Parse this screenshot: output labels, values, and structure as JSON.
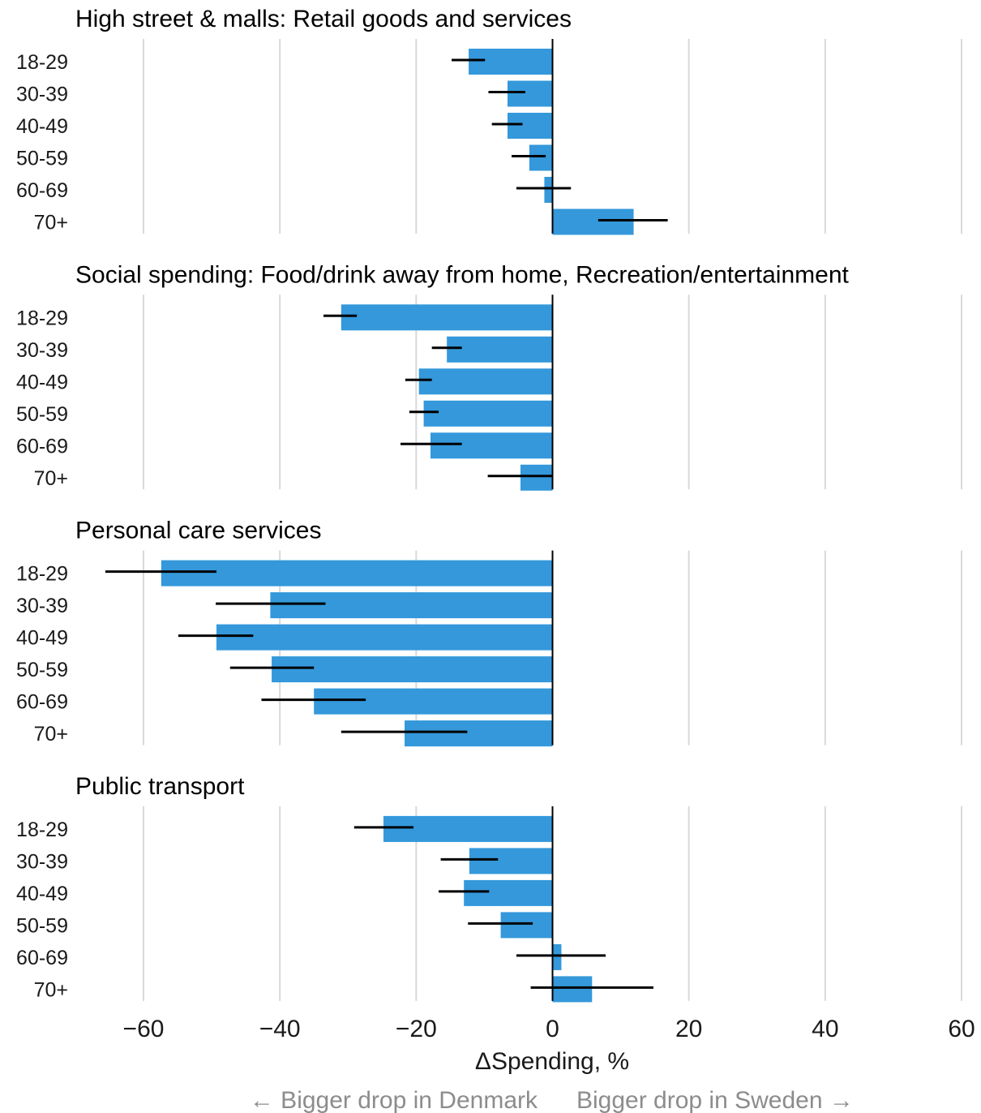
{
  "chart_data": {
    "type": "bar",
    "orientation": "horizontal",
    "categories": [
      "18-29",
      "30-39",
      "40-49",
      "50-59",
      "60-69",
      "70+"
    ],
    "xlabel": "ΔSpending, %",
    "xlim": [
      -60,
      60
    ],
    "xticks": [
      -60,
      -40,
      -20,
      0,
      20,
      40,
      60
    ],
    "xtick_labels": [
      "−60",
      "−40",
      "−20",
      "0",
      "20",
      "40",
      "60"
    ],
    "grid": "vertical",
    "bar_color": "#3498db",
    "annotations": {
      "left": "← Bigger drop in Denmark",
      "right": "Bigger drop in Sweden →"
    },
    "panels": [
      {
        "title": "High street & malls: Retail goods and services",
        "values": [
          -12.3,
          -6.6,
          -6.6,
          -3.4,
          -1.2,
          11.9
        ],
        "error_low": [
          -14.8,
          -9.4,
          -8.9,
          -6.0,
          -5.3,
          6.7
        ],
        "error_high": [
          -9.9,
          -4.0,
          -4.4,
          -1.0,
          2.7,
          16.9
        ]
      },
      {
        "title": "Social spending: Food/drink away from home, Recreation/entertainment",
        "values": [
          -31.0,
          -15.5,
          -19.6,
          -18.9,
          -17.9,
          -4.7
        ],
        "error_low": [
          -33.6,
          -17.7,
          -21.6,
          -21.0,
          -22.3,
          -9.5
        ],
        "error_high": [
          -28.7,
          -13.3,
          -17.7,
          -16.7,
          -13.3,
          0.0
        ]
      },
      {
        "title": "Personal care services",
        "values": [
          -57.4,
          -41.4,
          -49.3,
          -41.2,
          -35.0,
          -21.7
        ],
        "error_low": [
          -65.6,
          -49.4,
          -54.9,
          -47.3,
          -42.7,
          -31.0
        ],
        "error_high": [
          -49.3,
          -33.3,
          -43.9,
          -35.0,
          -27.4,
          -12.5
        ]
      },
      {
        "title": "Public transport",
        "values": [
          -24.8,
          -12.2,
          -13.0,
          -7.6,
          1.3,
          5.8
        ],
        "error_low": [
          -29.1,
          -16.4,
          -16.7,
          -12.4,
          -5.3,
          -3.2
        ],
        "error_high": [
          -20.4,
          -8.0,
          -9.3,
          -2.9,
          7.8,
          14.8
        ]
      }
    ]
  }
}
